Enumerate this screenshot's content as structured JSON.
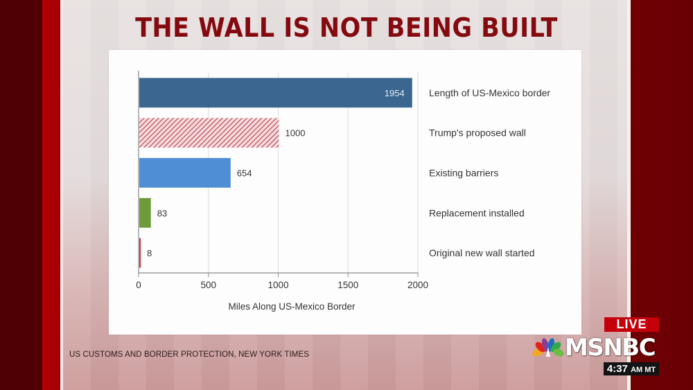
{
  "headline": "THE WALL IS NOT BEING BUILT",
  "source": "US CUSTOMS AND BORDER PROTECTION, NEW YORK TIMES",
  "broadcast": {
    "live_label": "LIVE",
    "network": "MSNBC",
    "time": "4:37",
    "time_suffix": "AM MT"
  },
  "chart_data": {
    "type": "bar",
    "orientation": "horizontal",
    "title": "",
    "xlabel": "Miles Along US-Mexico Border",
    "ylabel": "",
    "xlim": [
      0,
      2000
    ],
    "xticks": [
      0,
      500,
      1000,
      1500,
      2000
    ],
    "xtick_labels": [
      "0",
      "500",
      "1000",
      "1500",
      "2000"
    ],
    "grid": true,
    "categories": [
      "Length of US-Mexico border",
      "Trump's proposed wall",
      "Existing barriers",
      "Replacement installed",
      "Original new wall started"
    ],
    "values": [
      1954,
      1000,
      654,
      83,
      8
    ],
    "value_labels": [
      "1954",
      "1000",
      "654",
      "83",
      "8"
    ],
    "colors": [
      "#3a6690",
      "#c0404c",
      "#4f8ed4",
      "#6f9a3a",
      "#d0283a"
    ],
    "styles": [
      "solid",
      "hatched",
      "solid",
      "solid",
      "solid"
    ],
    "label_position": [
      "inside-end",
      "outside",
      "outside",
      "outside",
      "outside"
    ],
    "category_label_placement": "right"
  }
}
